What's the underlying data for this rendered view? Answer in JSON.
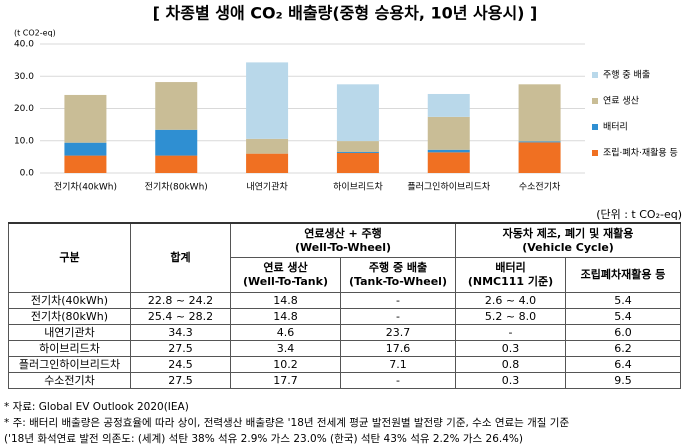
{
  "chart_data": {
    "type": "stacked_bar",
    "title": "[ 차종별 생애 CO₂ 배출량(중형 승용차, 10년 사용시) ]",
    "y_label": "(t CO2-eq)",
    "categories": [
      "전기차(40kWh)",
      "전기차(80kWh)",
      "내연기관차",
      "하이브리드차",
      "플러그인하이브리드차",
      "수소전기차"
    ],
    "series": [
      {
        "name": "조립·폐차·재활용 등",
        "color": "#f07022",
        "values": [
          5.4,
          5.4,
          6.0,
          6.2,
          6.4,
          9.5
        ]
      },
      {
        "name": "배터리",
        "color": "#2f8fd2",
        "values": [
          4.0,
          8.0,
          0,
          0.3,
          0.8,
          0.3
        ]
      },
      {
        "name": "연료 생산",
        "color": "#c9bd96",
        "values": [
          14.8,
          14.8,
          4.6,
          3.4,
          10.2,
          17.7
        ]
      },
      {
        "name": "주행 중 배출",
        "color": "#b9d8ea",
        "values": [
          0,
          0,
          23.7,
          17.6,
          7.1,
          0
        ]
      }
    ],
    "ylim": [
      0,
      40
    ],
    "yticks": [
      {
        "value": 0,
        "label": "0.0"
      },
      {
        "value": 10,
        "label": "10.0"
      },
      {
        "value": 20,
        "label": "20.0"
      },
      {
        "value": 30,
        "label": "30.0"
      },
      {
        "value": 40,
        "label": "40.0"
      }
    ],
    "grid": true,
    "legend": "right"
  },
  "table": {
    "unit": "(단위 : t CO₂-eq)",
    "header": {
      "category": "구분",
      "total": "합계",
      "wtw": {
        "title": "연료생산 + 주행",
        "sub": "(Well-To-Wheel)"
      },
      "vc": {
        "title": "자동차 제조, 폐기 및 재활용",
        "sub": "(Vehicle Cycle)"
      },
      "cols": [
        {
          "title": "연료 생산",
          "sub": "(Well-To-Tank)"
        },
        {
          "title": "주행 중 배출",
          "sub": "(Tank-To-Wheel)"
        },
        {
          "title": "배터리",
          "sub": "(NMC111 기준)"
        },
        {
          "title": "조립폐차재활용 등",
          "sub": null
        }
      ]
    },
    "rows": [
      [
        "전기차(40kWh)",
        "22.8 ~ 24.2",
        "14.8",
        "-",
        "2.6 ~ 4.0",
        "5.4"
      ],
      [
        "전기차(80kWh)",
        "25.4 ~ 28.2",
        "14.8",
        "-",
        "5.2 ~ 8.0",
        "5.4"
      ],
      [
        "내연기관차",
        "34.3",
        "4.6",
        "23.7",
        "-",
        "6.0"
      ],
      [
        "하이브리드차",
        "27.5",
        "3.4",
        "17.6",
        "0.3",
        "6.2"
      ],
      [
        "플러그인하이브리드차",
        "24.5",
        "10.2",
        "7.1",
        "0.8",
        "6.4"
      ],
      [
        "수소전기차",
        "27.5",
        "17.7",
        "-",
        "0.3",
        "9.5"
      ]
    ],
    "notes": [
      "* 자료: Global EV Outlook 2020(IEA)",
      "* 주: 배터리 배출량은 공정효율에 따라 상이, 전력생산 배출량은 '18년 전세계 평균 발전원별 발전량 기준, 수소 연료는 개질 기준",
      "('18년 화석연료 발전 의존도: (세계) 석탄 38% 석유 2.9% 가스 23.0% (한국) 석탄 43% 석유 2.2% 가스 26.4%)"
    ]
  }
}
